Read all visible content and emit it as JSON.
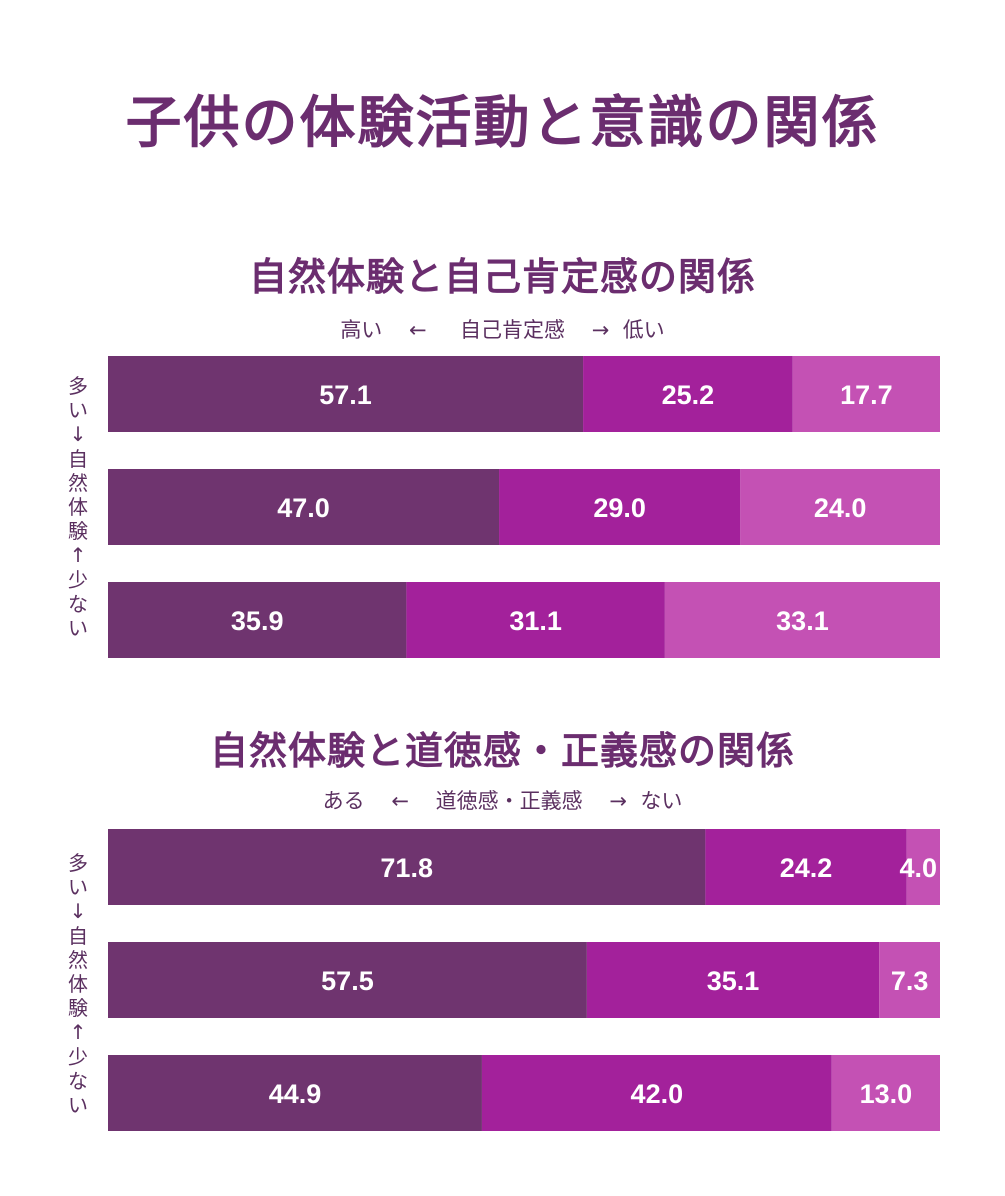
{
  "title": "子供の体験活動と意識の関係",
  "colors": {
    "title": "#6b2d6f",
    "seg1": "#6f346f",
    "seg2": "#a3219b",
    "seg3": "#c451b4"
  },
  "chart_data": [
    {
      "type": "bar",
      "orientation": "horizontal-stacked-100",
      "title": "自然体験と自己肯定感の関係",
      "scale": {
        "left": "高い",
        "left_arrow": "←",
        "center": "自己肯定感",
        "right_arrow": "→",
        "right": "低い"
      },
      "side_label": [
        "多",
        "い",
        "↓",
        "自",
        "然",
        "体",
        "験",
        "↑",
        "少",
        "な",
        "い"
      ],
      "series": [
        {
          "values": [
            57.1,
            47.0,
            35.9
          ],
          "labels": [
            "57.1",
            "47.0",
            "35.9"
          ]
        },
        {
          "values": [
            25.2,
            29.0,
            31.1
          ],
          "labels": [
            "25.2",
            "29.0",
            "31.1"
          ]
        },
        {
          "values": [
            17.7,
            24.0,
            33.1
          ],
          "labels": [
            "17.7",
            "24.0",
            "33.1"
          ]
        }
      ]
    },
    {
      "type": "bar",
      "orientation": "horizontal-stacked-100",
      "title": "自然体験と道徳感・正義感の関係",
      "scale": {
        "left": "ある",
        "left_arrow": "←",
        "center": "道徳感・正義感",
        "right_arrow": "→",
        "right": "ない"
      },
      "side_label": [
        "多",
        "い",
        "↓",
        "自",
        "然",
        "体",
        "験",
        "↑",
        "少",
        "な",
        "い"
      ],
      "series": [
        {
          "values": [
            71.8,
            57.5,
            44.9
          ],
          "labels": [
            "71.8",
            "57.5",
            "44.9"
          ]
        },
        {
          "values": [
            24.2,
            35.1,
            42.0
          ],
          "labels": [
            "24.2",
            "35.1",
            "42.0"
          ]
        },
        {
          "values": [
            4.0,
            7.3,
            13.0
          ],
          "labels": [
            "4.0",
            "7.3",
            "13.0"
          ]
        }
      ]
    }
  ]
}
